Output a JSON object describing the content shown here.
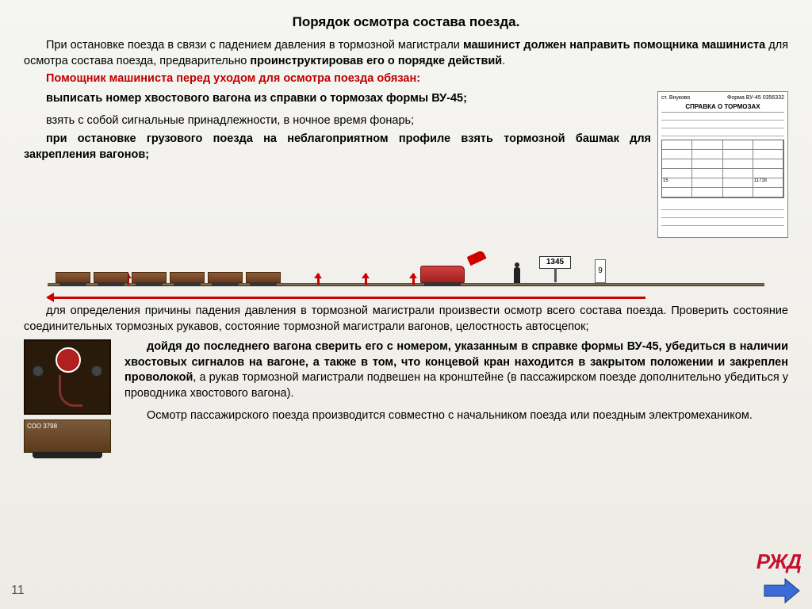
{
  "title": "Порядок осмотра состава поезда.",
  "intro_html": "При остановке поезда в связи с падением давления в тормозной магистрали <b>машинист должен направить помощника машиниста</b> для осмотра состава поезда, предварительно <b>проинструктировав его о порядке действий</b>.",
  "red_header": "Помощник машиниста перед уходом для осмотра поезда обязан:",
  "item1_html": "<b>выписать номер хвостового вагона из справки о тормозах формы ВУ-45;</b>",
  "item2_html": "взять с собой сигнальные принадлежности, в ночное время фонарь;",
  "item3_html": "<b>при остановке грузового поезда на неблагоприятном профиле взять тормозной башмак для закрепления вагонов;</b>",
  "form": {
    "station": "ст. Внуково",
    "form_no": "Форма ВУ-45   0356332",
    "title": "СПРАВКА О ТОРМОЗАХ",
    "row_num": "11718"
  },
  "diagram": {
    "sign_number": "1345",
    "post": "9"
  },
  "mid_para": "для определения причины падения давления в тормозной магистрали произвести осмотр всего состава поезда. Проверить состояние соединительных тормозных рукавов, состояние тормозной магистрали вагонов, целостность автосцепок;",
  "bottom1_html": "<b>дойдя до последнего вагона сверить его с номером, указанным в справке формы  ВУ-45, убедиться в наличии хвостовых сигналов на вагоне, а также в том, что концевой кран находится в закрытом положении и закреплен проволокой</b>, а рукав тормозной магистрали подвешен на кронштейне (в пассажирском поезде дополнительно убедиться у проводника хвостового вагона).",
  "bottom2": "Осмотр пассажирского поезда производится совместно с начальником поезда или поездным электромехаником.",
  "flat_wagon_label": "СОО  3798",
  "page_number": "11",
  "logo": "РЖД",
  "colors": {
    "red": "#c00000",
    "accent_red": "#c8102e",
    "rail": "#8a7a5a",
    "background_top": "#f5f5f2",
    "background_bottom": "#eeebe5"
  }
}
